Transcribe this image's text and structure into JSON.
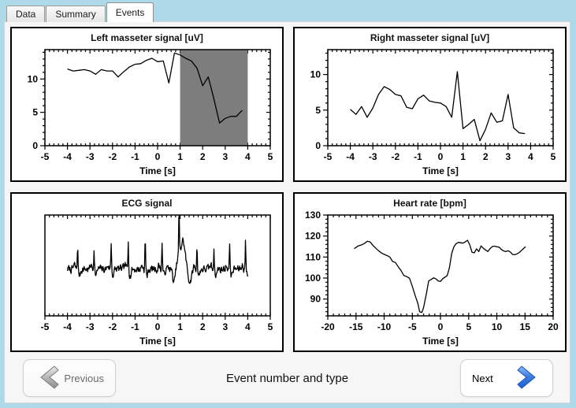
{
  "tabs": [
    {
      "label": "Data",
      "active": false
    },
    {
      "label": "Summary",
      "active": false
    },
    {
      "label": "Events",
      "active": true
    }
  ],
  "footer": {
    "previous_label": "Previous",
    "next_label": "Next",
    "caption": "Event number and type"
  },
  "colors": {
    "window_border": "#aed9e8",
    "page_bg": "#f6f6f6",
    "panel_border": "#000000",
    "shaded_region": "#7d7d7d",
    "line": "#000000",
    "next_arrow_blue": "#1e5fd0",
    "prev_arrow_gray": "#9a9a9a"
  },
  "chart_data": [
    {
      "type": "line",
      "title": "Left masseter signal [uV]",
      "xlabel": "Time [s]",
      "xlim": [
        -5,
        5
      ],
      "ylim": [
        0,
        14.4
      ],
      "xticks": [
        -5,
        -4,
        -3,
        -2,
        -1,
        0,
        1,
        2,
        3,
        4,
        5
      ],
      "xminor": 0.2,
      "yticks": [
        0,
        5,
        10
      ],
      "yminor": 1,
      "x_start": -4,
      "x_step": 0.25,
      "values": [
        11.5,
        11.2,
        11.3,
        11.4,
        11.2,
        10.7,
        11.4,
        11.2,
        11.2,
        10.3,
        11.1,
        11.8,
        12.2,
        12.3,
        12.8,
        13.1,
        12.6,
        12.7,
        9.4,
        13.9,
        13.6,
        13.1,
        12.7,
        11.6,
        9.0,
        10.3,
        7.0,
        3.4,
        4.1,
        4.4,
        4.4,
        5.3
      ],
      "shaded_region": {
        "from": 1,
        "to": 4,
        "color": "#7d7d7d"
      }
    },
    {
      "type": "line",
      "title": "Right masseter signal [uV]",
      "xlabel": "Time [s]",
      "xlim": [
        -5,
        5
      ],
      "ylim": [
        0,
        13.5
      ],
      "xticks": [
        -5,
        -4,
        -3,
        -2,
        -1,
        0,
        1,
        2,
        3,
        4,
        5
      ],
      "xminor": 0.2,
      "yticks": [
        0,
        5,
        10
      ],
      "yminor": 1,
      "x_start": -4,
      "x_step": 0.25,
      "values": [
        5.1,
        4.4,
        5.5,
        4.0,
        5.3,
        7.2,
        8.3,
        7.9,
        7.2,
        7.0,
        5.4,
        5.2,
        6.6,
        7.1,
        6.3,
        6.1,
        6.0,
        5.5,
        4.0,
        10.4,
        2.4,
        3.0,
        3.7,
        0.7,
        2.3,
        4.6,
        3.3,
        3.5,
        7.2,
        2.5,
        1.8,
        1.7
      ]
    },
    {
      "type": "line",
      "title": "ECG signal",
      "xlabel": "Time [s]",
      "xlim": [
        -5,
        5
      ],
      "ylim": [
        -3.8,
        4.4
      ],
      "xticks": [
        -5,
        -4,
        -3,
        -2,
        -1,
        0,
        1,
        2,
        3,
        4,
        5
      ],
      "xminor": 0.2,
      "yticks": [],
      "yminor": null,
      "ecg": {
        "seed": 7,
        "t_start": -4,
        "t_end": 4,
        "dt": 0.02,
        "noise": 0.27,
        "spikes": [
          {
            "t": -3.55,
            "a": 2.0
          },
          {
            "t": -2.82,
            "a": 1.9
          },
          {
            "t": -2.06,
            "a": 2.2
          },
          {
            "t": -1.3,
            "a": 2.4
          },
          {
            "t": -0.55,
            "a": 2.6
          },
          {
            "t": 0.2,
            "a": 2.2
          },
          {
            "t": 0.95,
            "a": 3.6
          },
          {
            "t": 1.75,
            "a": 2.1
          },
          {
            "t": 2.5,
            "a": 1.9
          },
          {
            "t": 3.2,
            "a": 2.0
          },
          {
            "t": 3.9,
            "a": 2.4
          }
        ],
        "bumps": [
          {
            "t": 0.74,
            "w": 0.1,
            "a": -1.5
          },
          {
            "t": 1.1,
            "w": 0.16,
            "a": 1.9
          },
          {
            "t": 1.42,
            "w": 0.13,
            "a": -1.1
          },
          {
            "t": 0.98,
            "w": 0.35,
            "a": 0.6
          }
        ]
      }
    },
    {
      "type": "line",
      "title": "Heart rate [bpm]",
      "xlabel": "Time [s]",
      "xlim": [
        -20,
        20
      ],
      "ylim": [
        82,
        130
      ],
      "xticks": [
        -20,
        -15,
        -10,
        -5,
        0,
        5,
        10,
        15,
        20
      ],
      "xminor": 1,
      "yticks": [
        90,
        100,
        110,
        120,
        130
      ],
      "yminor": 2,
      "points": [
        [
          -15.3,
          114
        ],
        [
          -14.6,
          115.3
        ],
        [
          -14,
          115.8
        ],
        [
          -13.4,
          116.6
        ],
        [
          -13,
          117.5
        ],
        [
          -12.5,
          117.2
        ],
        [
          -12,
          115.6
        ],
        [
          -11.4,
          114
        ],
        [
          -11,
          113
        ],
        [
          -10.4,
          111.8
        ],
        [
          -10,
          111.3
        ],
        [
          -9.4,
          110.6
        ],
        [
          -9,
          110
        ],
        [
          -8.5,
          107.9
        ],
        [
          -8,
          107.4
        ],
        [
          -7.4,
          105
        ],
        [
          -7,
          103.6
        ],
        [
          -6.5,
          101.2
        ],
        [
          -6,
          100.7
        ],
        [
          -5.5,
          99.9
        ],
        [
          -5,
          96
        ],
        [
          -4.5,
          91.8
        ],
        [
          -4,
          87.8
        ],
        [
          -3.7,
          84
        ],
        [
          -3.3,
          83.6
        ],
        [
          -3,
          86
        ],
        [
          -2.5,
          92.5
        ],
        [
          -2.1,
          98.6
        ],
        [
          -1.6,
          99.4
        ],
        [
          -1.2,
          100.1
        ],
        [
          -0.8,
          99.6
        ],
        [
          -0.4,
          98.6
        ],
        [
          0,
          98.4
        ],
        [
          0.4,
          99.7
        ],
        [
          0.8,
          100.4
        ],
        [
          1.2,
          101.2
        ],
        [
          1.6,
          105
        ],
        [
          2,
          111.8
        ],
        [
          2.4,
          115
        ],
        [
          2.8,
          116.4
        ],
        [
          3.2,
          117
        ],
        [
          3.6,
          116.8
        ],
        [
          4,
          116.6
        ],
        [
          4.4,
          117.2
        ],
        [
          4.8,
          118
        ],
        [
          5.2,
          115.8
        ],
        [
          5.6,
          112.3
        ],
        [
          6,
          112
        ],
        [
          6.4,
          113.9
        ],
        [
          6.8,
          112.6
        ],
        [
          7.2,
          115.3
        ],
        [
          7.6,
          114.2
        ],
        [
          8,
          113.4
        ],
        [
          8.4,
          112.6
        ],
        [
          8.8,
          114
        ],
        [
          9.2,
          115
        ],
        [
          9.6,
          115.2
        ],
        [
          10,
          114.9
        ],
        [
          10.4,
          114.7
        ],
        [
          10.8,
          113.6
        ],
        [
          11.2,
          112.9
        ],
        [
          11.6,
          112.6
        ],
        [
          12,
          113
        ],
        [
          12.4,
          112.4
        ],
        [
          12.8,
          111.2
        ],
        [
          13.2,
          111.1
        ],
        [
          13.6,
          111.5
        ],
        [
          14,
          112.2
        ],
        [
          14.4,
          113.2
        ],
        [
          14.8,
          114.2
        ],
        [
          15.1,
          114.9
        ]
      ]
    }
  ]
}
